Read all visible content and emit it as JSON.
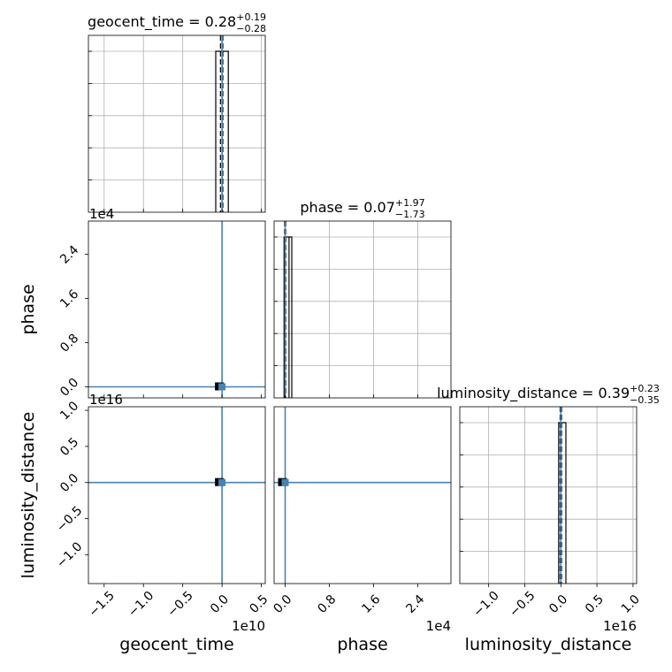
{
  "chart_data": {
    "type": "corner",
    "parameters": [
      {
        "name": "geocent_time",
        "axis_label": "geocent_time",
        "title_prefix": "geocent_time = ",
        "median": "0.28",
        "plus": "+0.19",
        "minus": "−0.28",
        "offset": "1e10",
        "range": [
          -1.7,
          0.55
        ],
        "ticks": [
          -1.5,
          -1.0,
          -0.5,
          0.0,
          0.5
        ],
        "tick_labels": [
          "−1.5",
          "−1.0",
          "−0.5",
          "0.0",
          "0.5"
        ],
        "truth": 0.0,
        "quantiles": [
          -0.02,
          0.01
        ],
        "hist_bins": [
          -0.08,
          0.0,
          0.08
        ],
        "hist_values": [
          1.0,
          1.0
        ]
      },
      {
        "name": "phase",
        "axis_label": "phase",
        "title_prefix": "phase = ",
        "median": "0.07",
        "plus": "+1.97",
        "minus": "−1.73",
        "offset": "1e4",
        "range": [
          -0.2,
          3.0
        ],
        "ticks": [
          0.0,
          0.8,
          1.6,
          2.4
        ],
        "tick_labels": [
          "0.0",
          "0.8",
          "1.6",
          "2.4"
        ],
        "truth": 0.0,
        "quantiles": [
          -0.01,
          0.01
        ],
        "hist_bins": [
          -0.02,
          0.07,
          0.12
        ],
        "hist_values": [
          1.0,
          1.0
        ]
      },
      {
        "name": "luminosity_distance",
        "axis_label": "luminosity_distance",
        "title_prefix": "luminosity_distance = ",
        "median": "0.39",
        "plus": "+0.23",
        "minus": "−0.35",
        "offset": "1e16",
        "range": [
          -1.4,
          1.05
        ],
        "ticks": [
          -1.0,
          -0.5,
          0.0,
          0.5,
          1.0
        ],
        "tick_labels": [
          "−1.0",
          "−0.5",
          "0.0",
          "0.5",
          "1.0"
        ],
        "truth": 0.0,
        "quantiles": [
          -0.01,
          0.01
        ],
        "hist_bins": [
          -0.03,
          0.0,
          0.07
        ],
        "hist_values": [
          1.0,
          1.0
        ]
      }
    ],
    "truth_color": "#4682b4",
    "grid": true
  }
}
